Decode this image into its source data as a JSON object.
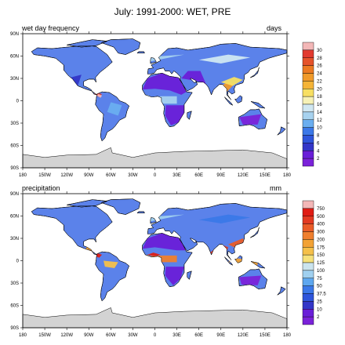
{
  "title": "July: 1991-2000: WET, PRE",
  "panels": [
    {
      "left_label": "wet day frequency",
      "right_label": "days",
      "colorbar": {
        "labels": [
          "30",
          "28",
          "26",
          "24",
          "22",
          "20",
          "18",
          "16",
          "14",
          "12",
          "10",
          "8",
          "6",
          "4",
          "2"
        ],
        "colors": [
          "#f3b7b7",
          "#e23a2f",
          "#e5532a",
          "#ec7a22",
          "#f09a2a",
          "#f5b437",
          "#f7df62",
          "#f6f1b6",
          "#d0e7f2",
          "#a7d2ef",
          "#6aaef0",
          "#3b78e8",
          "#2e55db",
          "#3336c8",
          "#6a1ed8",
          "#7b22d9"
        ]
      }
    },
    {
      "left_label": "precipitation",
      "right_label": "mm",
      "colorbar": {
        "labels": [
          "750",
          "500",
          "400",
          "300",
          "200",
          "175",
          "150",
          "125",
          "100",
          "75",
          "50",
          "37.5",
          "25",
          "10",
          "2"
        ],
        "colors": [
          "#f3b7b7",
          "#e01c14",
          "#e33a22",
          "#ea5c28",
          "#ef7f2e",
          "#f2a235",
          "#f5c04a",
          "#f6e17b",
          "#cbe4ee",
          "#a0d0ef",
          "#5ea7ef",
          "#3b78e8",
          "#2e55db",
          "#3336c8",
          "#6a1ed8",
          "#7b22d9"
        ]
      }
    }
  ],
  "lat_labels": [
    "90N",
    "60N",
    "30N",
    "0",
    "30S",
    "60S",
    "90S"
  ],
  "lon_labels": [
    "180",
    "150W",
    "120W",
    "90W",
    "60W",
    "30W",
    "0",
    "30E",
    "60E",
    "90E",
    "120E",
    "150E",
    "180"
  ],
  "accent": {
    "ocean": "#ffffff",
    "antarctica": "#d3d3d3",
    "land_fill": "#5b82ea"
  }
}
